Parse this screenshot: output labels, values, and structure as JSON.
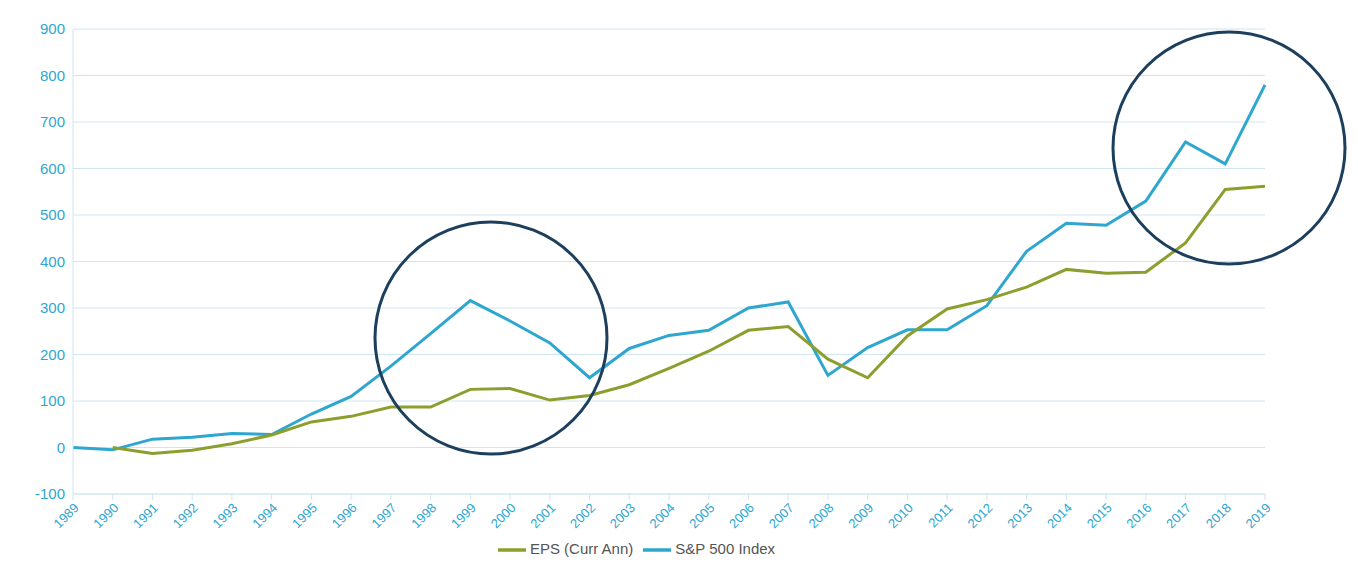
{
  "chart_data": {
    "type": "line",
    "categories": [
      "1989",
      "1990",
      "1991",
      "1992",
      "1993",
      "1994",
      "1995",
      "1996",
      "1997",
      "1998",
      "1999",
      "2000",
      "2001",
      "2002",
      "2003",
      "2004",
      "2005",
      "2006",
      "2007",
      "2008",
      "2009",
      "2010",
      "2011",
      "2012",
      "2013",
      "2014",
      "2015",
      "2016",
      "2017",
      "2018",
      "2019"
    ],
    "series": [
      {
        "name": "S&P 500 Index",
        "color": "#2ea6d0",
        "values": [
          0,
          -5,
          18,
          22,
          30,
          28,
          72,
          110,
          175,
          245,
          316,
          272,
          225,
          150,
          213,
          241,
          252,
          300,
          313,
          155,
          215,
          253,
          253,
          305,
          422,
          482,
          478,
          530,
          657,
          610,
          780
        ]
      },
      {
        "name": "EPS (Curr Ann)",
        "color": "#8c9f2e",
        "values": [
          null,
          0,
          -13,
          -6,
          8,
          27,
          55,
          67,
          87,
          87,
          125,
          127,
          102,
          112,
          135,
          170,
          207,
          252,
          260,
          190,
          150,
          240,
          298,
          318,
          345,
          383,
          375,
          377,
          440,
          555,
          562
        ]
      }
    ],
    "ylim": [
      -100,
      900
    ],
    "yticks": [
      -100,
      0,
      100,
      200,
      300,
      400,
      500,
      600,
      700,
      800,
      900
    ],
    "grid": true,
    "legend": "bottom"
  }
}
